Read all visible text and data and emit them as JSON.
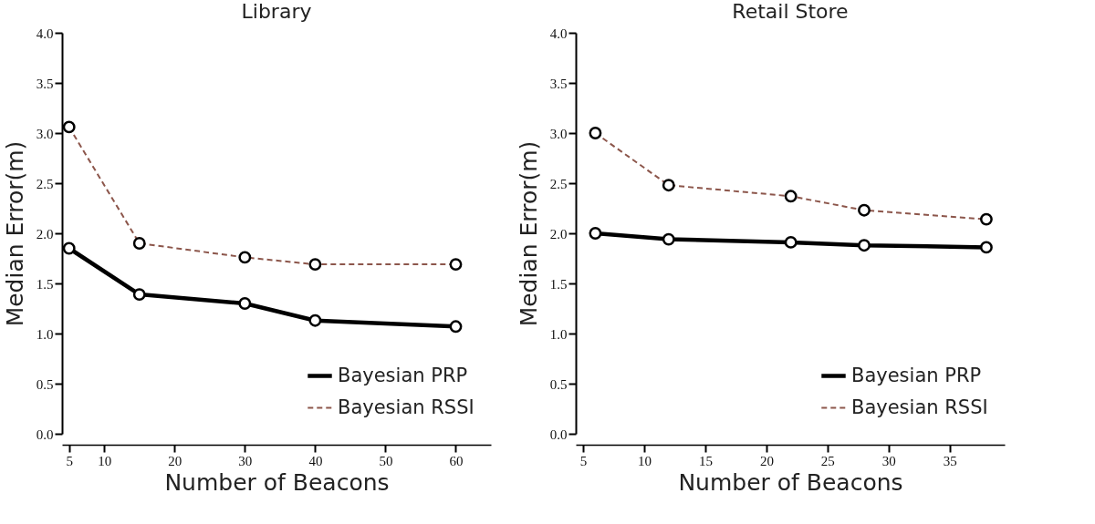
{
  "chart_data": [
    {
      "type": "line",
      "title": "Library",
      "xlabel": "Number of Beacons",
      "ylabel": "Median Error(m)",
      "x": [
        5,
        15,
        30,
        40,
        60
      ],
      "series": [
        {
          "name": "Bayesian PRP",
          "color": "#000000",
          "line_style": "solid",
          "values": [
            1.85,
            1.39,
            1.3,
            1.13,
            1.07
          ]
        },
        {
          "name": "Bayesian RSSI",
          "color": "#8c564b",
          "line_style": "dashed",
          "values": [
            3.06,
            1.9,
            1.76,
            1.69,
            1.69
          ]
        }
      ],
      "xlim": [
        4,
        65
      ],
      "xticks": [
        5,
        10,
        20,
        30,
        40,
        50,
        60
      ],
      "ylim": [
        0,
        4
      ],
      "yticks": [
        {
          "value": 0,
          "label": "0.0"
        },
        0.5,
        {
          "value": 1,
          "label": "1.0"
        },
        1.5,
        {
          "value": 2,
          "label": "2.0"
        },
        2.5,
        {
          "value": 3,
          "label": "3.0"
        },
        3.5,
        {
          "value": 4,
          "label": "4.0"
        }
      ],
      "marker": "circle",
      "legend": "bottom right"
    },
    {
      "type": "line",
      "title": "Retail Store",
      "xlabel": "Number of Beacons",
      "ylabel": "Median Error(m)",
      "x": [
        6,
        12,
        22,
        28,
        38
      ],
      "series": [
        {
          "name": "Bayesian PRP",
          "color": "#000000",
          "line_style": "solid",
          "values": [
            2.0,
            1.94,
            1.91,
            1.88,
            1.86
          ]
        },
        {
          "name": "Bayesian RSSI",
          "color": "#8c564b",
          "line_style": "dashed",
          "values": [
            3.0,
            2.48,
            2.37,
            2.23,
            2.14
          ]
        }
      ],
      "xlim": [
        4.4,
        39.5
      ],
      "xticks": [
        5,
        10,
        15,
        20,
        25,
        30,
        35
      ],
      "ylim": [
        0,
        4
      ],
      "yticks": [
        {
          "value": 0,
          "label": "0.0"
        },
        0.5,
        {
          "value": 1,
          "label": "1.0"
        },
        1.5,
        {
          "value": 2,
          "label": "2.0"
        },
        2.5,
        {
          "value": 3,
          "label": "3.0"
        },
        3.5,
        {
          "value": 4,
          "label": "4.0"
        }
      ],
      "marker": "circle",
      "legend": "bottom right"
    }
  ]
}
